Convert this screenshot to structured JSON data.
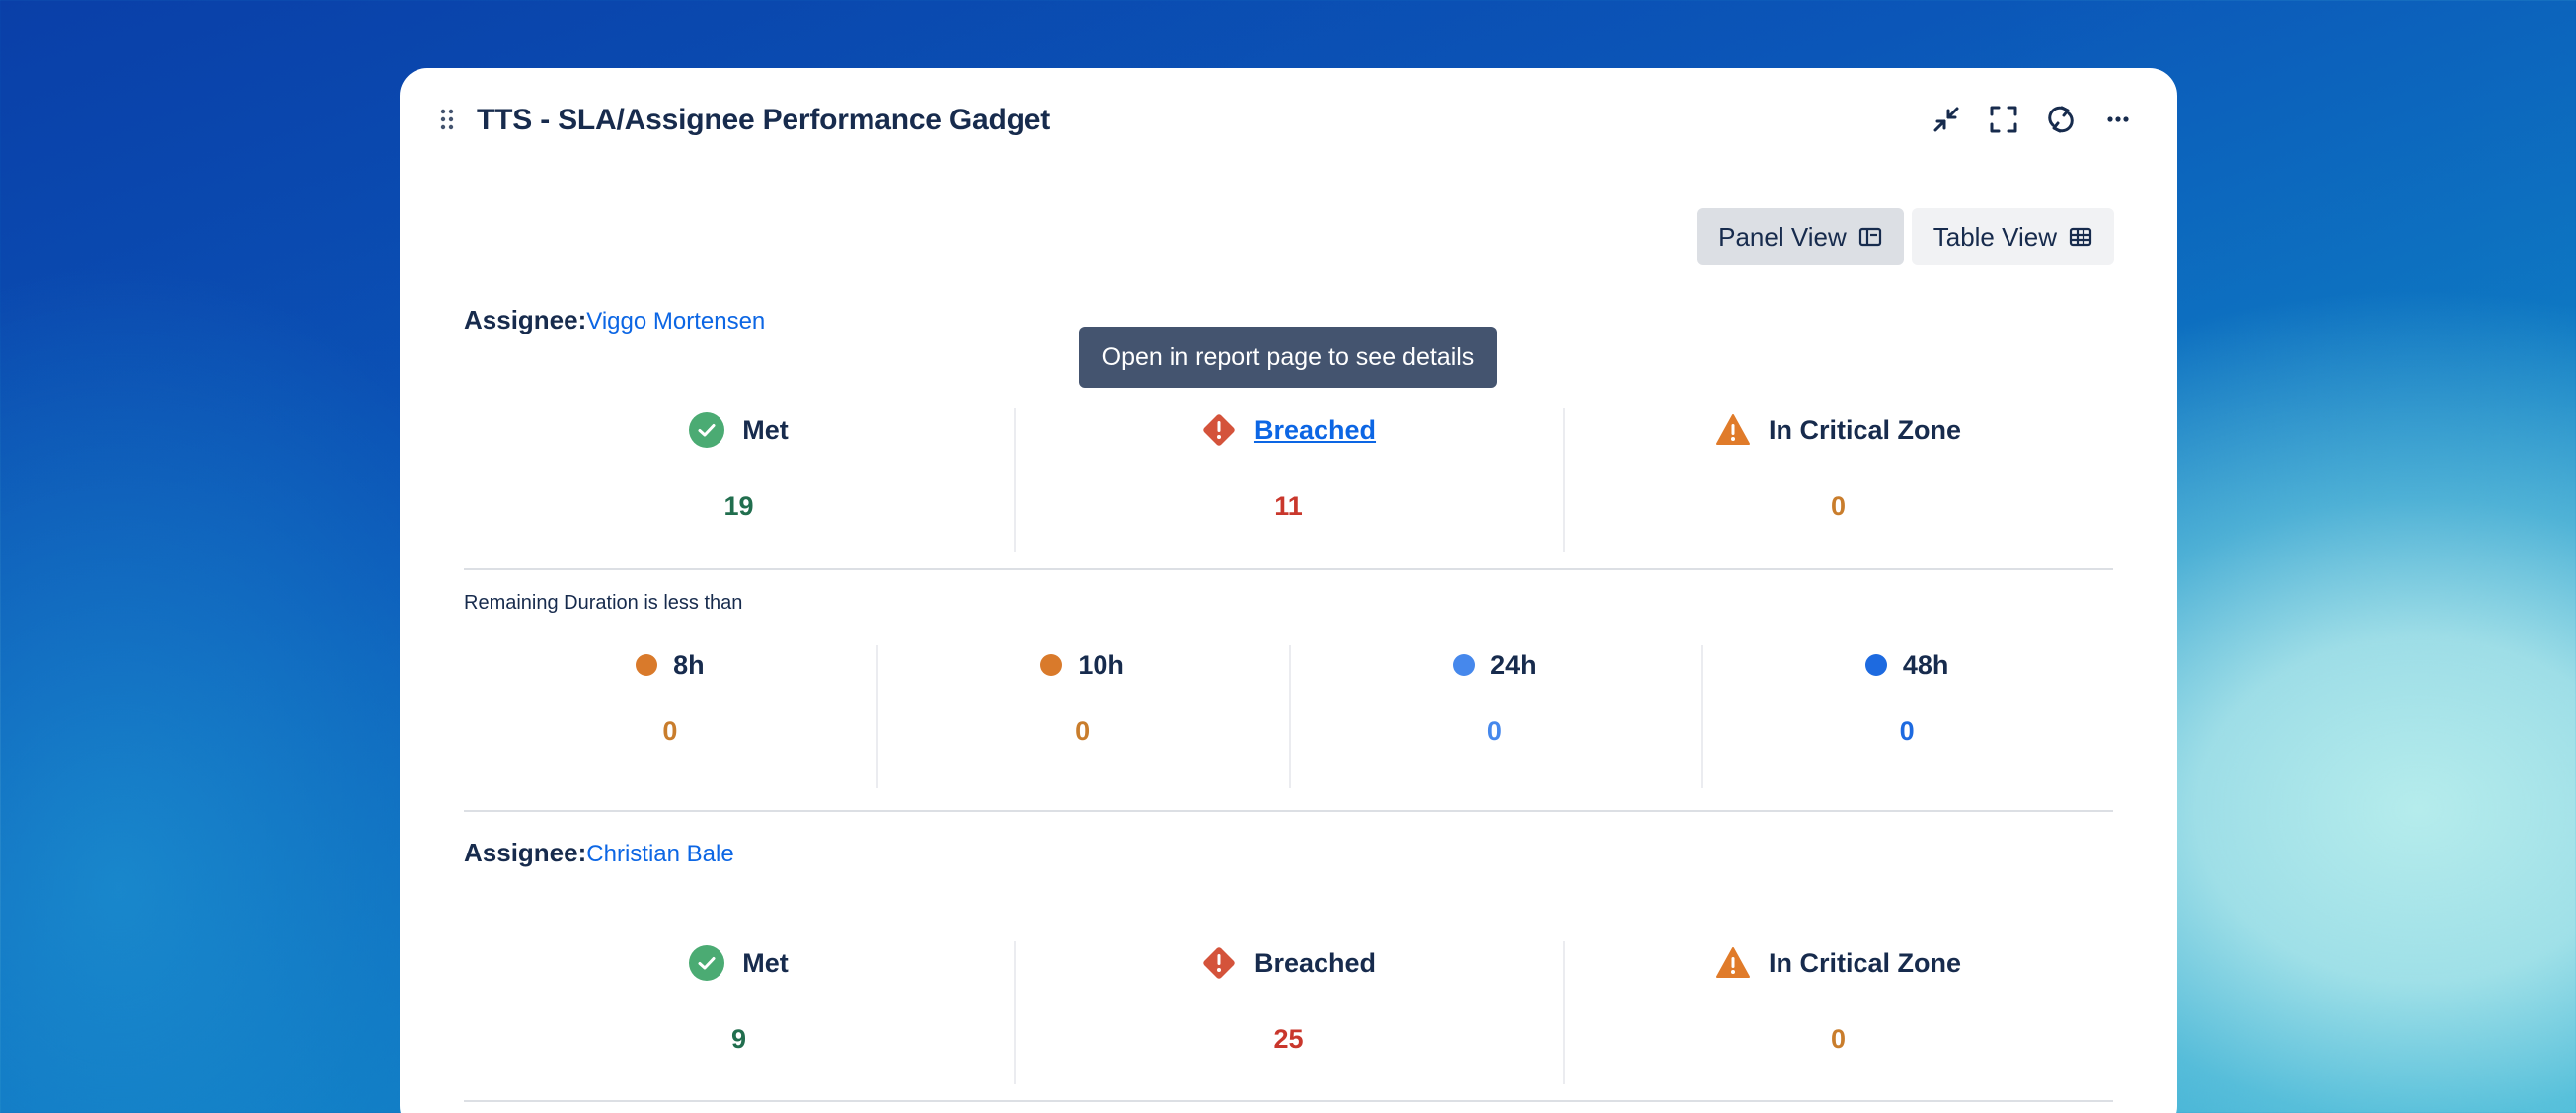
{
  "gadget": {
    "title": "TTS - SLA/Assignee Performance Gadget",
    "icons": [
      "drag-handle-icon",
      "minimize-icon",
      "fullscreen-icon",
      "refresh-icon",
      "more-icon"
    ]
  },
  "view_toggle": {
    "panel_label": "Panel View",
    "table_label": "Table View",
    "active": "Panel View"
  },
  "tooltip": "Open in report page to see details",
  "assignees": [
    {
      "label": "Assignee:",
      "name": "Viggo Mortensen",
      "met": {
        "label": "Met",
        "value": "19",
        "color": "#216e4e"
      },
      "breached": {
        "label": "Breached",
        "value": "11",
        "color": "#c9372c"
      },
      "critical": {
        "label": "In Critical Zone",
        "value": "0",
        "color": "#c97d2c"
      },
      "remaining": {
        "label": "Remaining Duration is less than",
        "buckets": [
          {
            "label": "8h",
            "value": "0",
            "color": "#d97a2b"
          },
          {
            "label": "10h",
            "value": "0",
            "color": "#d97a2b"
          },
          {
            "label": "24h",
            "value": "0",
            "color": "#4688ec"
          },
          {
            "label": "48h",
            "value": "0",
            "color": "#1d6ae0"
          }
        ]
      }
    },
    {
      "label": "Assignee:",
      "name": "Christian Bale",
      "met": {
        "label": "Met",
        "value": "9",
        "color": "#216e4e"
      },
      "breached": {
        "label": "Breached",
        "value": "25",
        "color": "#c9372c"
      },
      "critical": {
        "label": "In Critical Zone",
        "value": "0",
        "color": "#c97d2c"
      }
    }
  ],
  "colors": {
    "met_icon": "#4bab73",
    "breached_icon": "#d4533b",
    "warning_icon": "#e07b2a",
    "link": "#0c66e4"
  }
}
